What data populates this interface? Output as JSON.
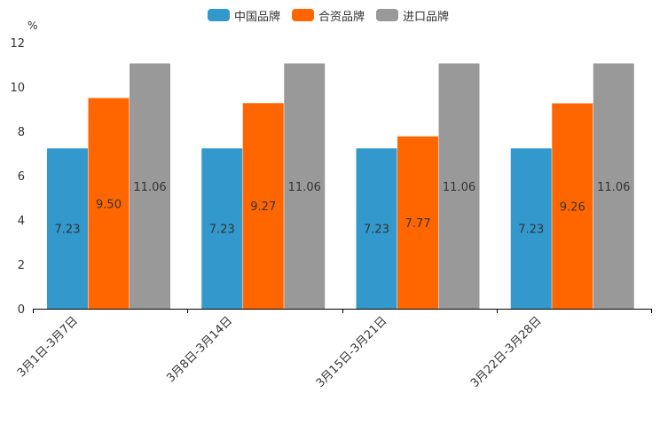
{
  "chart_data": {
    "type": "bar",
    "unit": "%",
    "categories": [
      "3月1日-3月7日",
      "3月8日-3月14日",
      "3月15日-3月21日",
      "3月22日-3月28日"
    ],
    "series": [
      {
        "name": "中国品牌",
        "color": "#3399cc",
        "values": [
          7.23,
          7.23,
          7.23,
          7.23
        ],
        "labels": [
          "7.23",
          "7.23",
          "7.23",
          "7.23"
        ]
      },
      {
        "name": "合资品牌",
        "color": "#ff6600",
        "values": [
          9.5,
          9.27,
          7.77,
          9.26
        ],
        "labels": [
          "9.50",
          "9.27",
          "7.77",
          "9.26"
        ]
      },
      {
        "name": "进口品牌",
        "color": "#999999",
        "values": [
          11.06,
          11.06,
          11.06,
          11.06
        ],
        "labels": [
          "11.06",
          "11.06",
          "11.06",
          "11.06"
        ]
      }
    ],
    "ylim": [
      0,
      12
    ],
    "yticks": [
      "0",
      "2",
      "4",
      "6",
      "8",
      "10",
      "12"
    ],
    "grid": false,
    "legend": "top-center"
  }
}
